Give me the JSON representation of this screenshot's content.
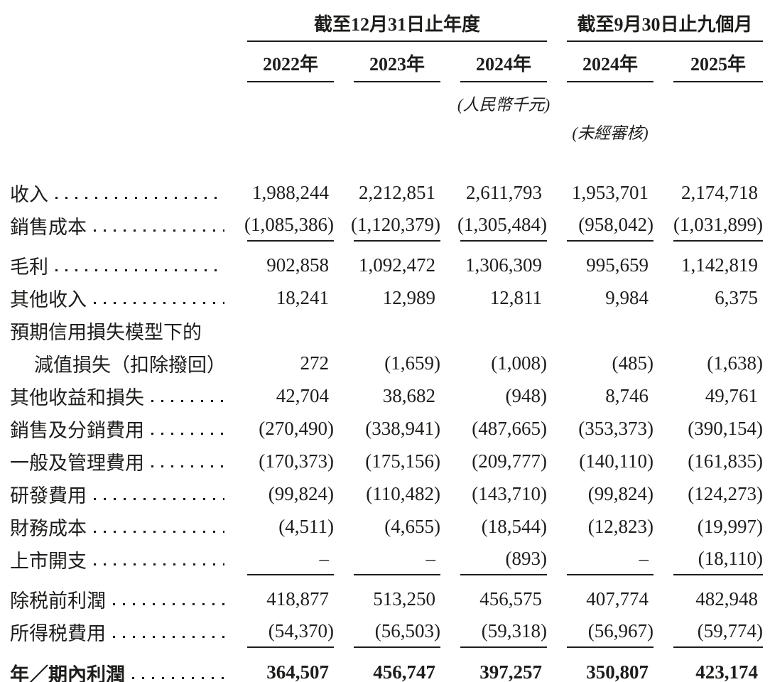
{
  "table": {
    "header": {
      "group_annual": {
        "title": "截至12月31日止年度",
        "years": [
          "2022年",
          "2023年",
          "2024年"
        ]
      },
      "group_interim": {
        "title": "截至9月30日止九個月",
        "years": [
          "2024年",
          "2025年"
        ]
      },
      "currency_note": "(人民幣千元)",
      "unaudited_note": "(未經審核)"
    },
    "rows": [
      {
        "label": "收入",
        "leader": true,
        "values": [
          "1,988,244",
          "2,212,851",
          "2,611,793",
          "1,953,701",
          "2,174,718"
        ]
      },
      {
        "label": "銷售成本",
        "leader": true,
        "values": [
          "(1,085,386)",
          "(1,120,379)",
          "(1,305,484)",
          "(958,042)",
          "(1,031,899)"
        ],
        "underline": true,
        "space_after": 10
      },
      {
        "label": "毛利",
        "leader": true,
        "values": [
          "902,858",
          "1,092,472",
          "1,306,309",
          "995,659",
          "1,142,819"
        ]
      },
      {
        "label": "其他收入",
        "leader": true,
        "values": [
          "18,241",
          "12,989",
          "12,811",
          "9,984",
          "6,375"
        ]
      },
      {
        "label": "預期信用損失模型下的",
        "leader": false,
        "values": [
          "",
          "",
          "",
          "",
          ""
        ]
      },
      {
        "label": "減值損失（扣除撥回）",
        "leader": true,
        "indent": true,
        "values": [
          "272",
          "(1,659)",
          "(1,008)",
          "(485)",
          "(1,638)"
        ]
      },
      {
        "label": "其他收益和損失",
        "leader": true,
        "values": [
          "42,704",
          "38,682",
          "(948)",
          "8,746",
          "49,761"
        ]
      },
      {
        "label": "銷售及分銷費用",
        "leader": true,
        "values": [
          "(270,490)",
          "(338,941)",
          "(487,665)",
          "(353,373)",
          "(390,154)"
        ]
      },
      {
        "label": "一般及管理費用",
        "leader": true,
        "values": [
          "(170,373)",
          "(175,156)",
          "(209,777)",
          "(140,110)",
          "(161,835)"
        ]
      },
      {
        "label": "研發費用",
        "leader": true,
        "values": [
          "(99,824)",
          "(110,482)",
          "(143,710)",
          "(99,824)",
          "(124,273)"
        ]
      },
      {
        "label": "財務成本",
        "leader": true,
        "values": [
          "(4,511)",
          "(4,655)",
          "(18,544)",
          "(12,823)",
          "(19,997)"
        ]
      },
      {
        "label": "上市開支",
        "leader": true,
        "values": [
          "–",
          "–",
          "(893)",
          "–",
          "(18,110)"
        ],
        "underline": true,
        "space_after": 10
      },
      {
        "label": "除税前利潤",
        "leader": true,
        "values": [
          "418,877",
          "513,250",
          "456,575",
          "407,774",
          "482,948"
        ]
      },
      {
        "label": "所得税費用",
        "leader": true,
        "values": [
          "(54,370)",
          "(56,503)",
          "(59,318)",
          "(56,967)",
          "(59,774)"
        ],
        "underline": true,
        "space_after": 11
      },
      {
        "label": "年／期內利潤",
        "leader": true,
        "bold": true,
        "values": [
          "364,507",
          "456,747",
          "397,257",
          "350,807",
          "423,174"
        ],
        "underline": true
      }
    ]
  },
  "colors": {
    "text": "#1d1d1b",
    "line": "#1d1d1b",
    "background": "#ffffff"
  }
}
